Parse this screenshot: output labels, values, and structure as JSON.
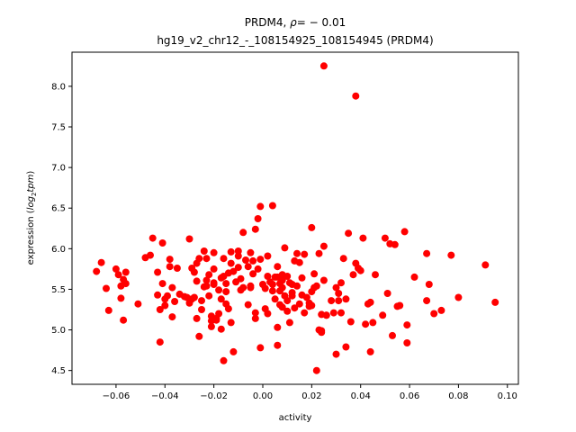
{
  "chart_data": {
    "type": "scatter",
    "title_line1_prefix": "PRDM4, ",
    "title_rho_symbol": "ρ",
    "title_rho_value": "= − 0.01",
    "title_line2": "hg19_v2_chr12_-_108154925_108154945 (PRDM4)",
    "xlabel": "activity",
    "ylabel_prefix": "expression (",
    "ylabel_italic_a": "log",
    "ylabel_sub": "2",
    "ylabel_italic_b": "tpm",
    "ylabel_suffix": ")",
    "xlim": [
      -0.078,
      0.1045
    ],
    "ylim": [
      4.33,
      8.42
    ],
    "xticks": [
      -0.06,
      -0.04,
      -0.02,
      0.0,
      0.02,
      0.04,
      0.06,
      0.08,
      0.1
    ],
    "xtick_labels": [
      "−0.06",
      "−0.04",
      "−0.02",
      "0.00",
      "0.02",
      "0.04",
      "0.06",
      "0.08",
      "0.10"
    ],
    "yticks": [
      4.5,
      5.0,
      5.5,
      6.0,
      6.5,
      7.0,
      7.5,
      8.0
    ],
    "ytick_labels": [
      "4.5",
      "5.0",
      "5.5",
      "6.0",
      "6.5",
      "7.0",
      "7.5",
      "8.0"
    ],
    "grid": false,
    "marker_color": "#ff0000",
    "points": [
      [
        0.025,
        8.25
      ],
      [
        0.038,
        7.88
      ],
      [
        -0.066,
        5.83
      ],
      [
        -0.068,
        5.72
      ],
      [
        -0.064,
        5.51
      ],
      [
        -0.063,
        5.24
      ],
      [
        -0.06,
        5.75
      ],
      [
        -0.059,
        5.68
      ],
      [
        -0.058,
        5.54
      ],
      [
        -0.058,
        5.39
      ],
      [
        -0.057,
        5.12
      ],
      [
        -0.057,
        5.62
      ],
      [
        -0.056,
        5.57
      ],
      [
        -0.056,
        5.71
      ],
      [
        -0.051,
        5.32
      ],
      [
        -0.048,
        5.89
      ],
      [
        -0.046,
        5.92
      ],
      [
        -0.045,
        6.13
      ],
      [
        -0.043,
        5.71
      ],
      [
        -0.043,
        5.43
      ],
      [
        -0.042,
        5.25
      ],
      [
        -0.042,
        4.85
      ],
      [
        -0.041,
        6.07
      ],
      [
        -0.041,
        5.57
      ],
      [
        -0.04,
        5.38
      ],
      [
        -0.04,
        5.3
      ],
      [
        -0.039,
        5.42
      ],
      [
        -0.038,
        5.87
      ],
      [
        -0.038,
        5.78
      ],
      [
        -0.037,
        5.52
      ],
      [
        -0.037,
        5.16
      ],
      [
        -0.036,
        5.35
      ],
      [
        -0.035,
        5.76
      ],
      [
        -0.034,
        5.44
      ],
      [
        -0.032,
        5.41
      ],
      [
        -0.031,
        5.4
      ],
      [
        -0.03,
        5.33
      ],
      [
        -0.03,
        6.12
      ],
      [
        -0.029,
        5.38
      ],
      [
        -0.029,
        5.76
      ],
      [
        -0.028,
        5.71
      ],
      [
        -0.028,
        5.4
      ],
      [
        -0.027,
        5.6
      ],
      [
        -0.027,
        5.14
      ],
      [
        -0.027,
        5.82
      ],
      [
        -0.026,
        5.88
      ],
      [
        -0.026,
        4.92
      ],
      [
        -0.025,
        5.36
      ],
      [
        -0.025,
        5.25
      ],
      [
        -0.024,
        5.53
      ],
      [
        -0.024,
        5.97
      ],
      [
        -0.023,
        5.54
      ],
      [
        -0.023,
        5.88
      ],
      [
        -0.023,
        5.61
      ],
      [
        -0.022,
        5.68
      ],
      [
        -0.022,
        5.42
      ],
      [
        -0.021,
        5.17
      ],
      [
        -0.021,
        5.04
      ],
      [
        -0.021,
        5.11
      ],
      [
        -0.02,
        5.95
      ],
      [
        -0.02,
        5.56
      ],
      [
        -0.02,
        5.75
      ],
      [
        -0.02,
        5.58
      ],
      [
        -0.019,
        5.14
      ],
      [
        -0.019,
        5.12
      ],
      [
        -0.018,
        5.2
      ],
      [
        -0.018,
        5.49
      ],
      [
        -0.017,
        5.64
      ],
      [
        -0.017,
        5.38
      ],
      [
        -0.017,
        5.01
      ],
      [
        -0.016,
        5.88
      ],
      [
        -0.016,
        4.62
      ],
      [
        -0.016,
        5.66
      ],
      [
        -0.015,
        5.32
      ],
      [
        -0.015,
        5.57
      ],
      [
        -0.015,
        5.47
      ],
      [
        -0.014,
        5.26
      ],
      [
        -0.014,
        5.7
      ],
      [
        -0.013,
        5.96
      ],
      [
        -0.013,
        5.09
      ],
      [
        -0.013,
        5.82
      ],
      [
        -0.012,
        4.73
      ],
      [
        -0.012,
        5.72
      ],
      [
        -0.011,
        5.59
      ],
      [
        -0.01,
        5.97
      ],
      [
        -0.01,
        5.91
      ],
      [
        -0.01,
        5.77
      ],
      [
        -0.009,
        5.63
      ],
      [
        -0.009,
        5.49
      ],
      [
        -0.008,
        5.52
      ],
      [
        -0.008,
        6.2
      ],
      [
        -0.007,
        5.86
      ],
      [
        -0.006,
        5.78
      ],
      [
        -0.006,
        5.31
      ],
      [
        -0.005,
        5.52
      ],
      [
        -0.005,
        5.95
      ],
      [
        -0.005,
        5.54
      ],
      [
        -0.004,
        5.69
      ],
      [
        -0.004,
        5.85
      ],
      [
        -0.003,
        6.24
      ],
      [
        -0.003,
        5.21
      ],
      [
        -0.003,
        5.14
      ],
      [
        -0.002,
        6.37
      ],
      [
        -0.002,
        5.75
      ],
      [
        -0.001,
        6.52
      ],
      [
        -0.001,
        5.87
      ],
      [
        -0.001,
        4.78
      ],
      [
        0.0,
        5.56
      ],
      [
        0.001,
        5.26
      ],
      [
        0.001,
        5.51
      ],
      [
        0.002,
        5.66
      ],
      [
        0.002,
        5.2
      ],
      [
        0.002,
        5.91
      ],
      [
        0.003,
        5.59
      ],
      [
        0.004,
        5.48
      ],
      [
        0.004,
        5.56
      ],
      [
        0.004,
        6.53
      ],
      [
        0.005,
        5.65
      ],
      [
        0.005,
        5.38
      ],
      [
        0.006,
        5.65
      ],
      [
        0.006,
        5.78
      ],
      [
        0.006,
        5.03
      ],
      [
        0.006,
        4.81
      ],
      [
        0.007,
        5.48
      ],
      [
        0.007,
        5.57
      ],
      [
        0.007,
        5.31
      ],
      [
        0.008,
        5.28
      ],
      [
        0.008,
        5.52
      ],
      [
        0.008,
        5.61
      ],
      [
        0.008,
        5.68
      ],
      [
        0.009,
        6.01
      ],
      [
        0.009,
        5.42
      ],
      [
        0.01,
        5.23
      ],
      [
        0.01,
        5.66
      ],
      [
        0.01,
        5.36
      ],
      [
        0.011,
        5.58
      ],
      [
        0.011,
        5.09
      ],
      [
        0.012,
        5.42
      ],
      [
        0.012,
        5.46
      ],
      [
        0.012,
        5.56
      ],
      [
        0.013,
        5.85
      ],
      [
        0.013,
        5.27
      ],
      [
        0.014,
        5.94
      ],
      [
        0.014,
        5.54
      ],
      [
        0.015,
        5.83
      ],
      [
        0.015,
        5.32
      ],
      [
        0.016,
        5.64
      ],
      [
        0.016,
        5.43
      ],
      [
        0.017,
        5.93
      ],
      [
        0.017,
        5.21
      ],
      [
        0.018,
        5.4
      ],
      [
        0.019,
        5.29
      ],
      [
        0.019,
        5.33
      ],
      [
        0.02,
        6.26
      ],
      [
        0.02,
        5.3
      ],
      [
        0.02,
        5.47
      ],
      [
        0.021,
        5.69
      ],
      [
        0.021,
        5.52
      ],
      [
        0.022,
        5.54
      ],
      [
        0.022,
        4.5
      ],
      [
        0.023,
        5.0
      ],
      [
        0.023,
        5.94
      ],
      [
        0.024,
        4.97
      ],
      [
        0.024,
        5.19
      ],
      [
        0.024,
        4.99
      ],
      [
        0.025,
        5.61
      ],
      [
        0.025,
        6.03
      ],
      [
        0.026,
        5.18
      ],
      [
        0.026,
        5.18
      ],
      [
        0.028,
        5.36
      ],
      [
        0.029,
        5.21
      ],
      [
        0.03,
        4.7
      ],
      [
        0.03,
        5.52
      ],
      [
        0.031,
        5.36
      ],
      [
        0.031,
        5.45
      ],
      [
        0.032,
        5.58
      ],
      [
        0.032,
        5.21
      ],
      [
        0.033,
        5.88
      ],
      [
        0.034,
        5.38
      ],
      [
        0.034,
        4.79
      ],
      [
        0.035,
        6.19
      ],
      [
        0.036,
        5.1
      ],
      [
        0.037,
        5.68
      ],
      [
        0.038,
        5.82
      ],
      [
        0.039,
        5.76
      ],
      [
        0.04,
        5.73
      ],
      [
        0.041,
        6.13
      ],
      [
        0.042,
        5.07
      ],
      [
        0.043,
        5.32
      ],
      [
        0.044,
        4.73
      ],
      [
        0.044,
        5.34
      ],
      [
        0.045,
        5.09
      ],
      [
        0.046,
        5.68
      ],
      [
        0.049,
        5.18
      ],
      [
        0.05,
        6.13
      ],
      [
        0.051,
        5.45
      ],
      [
        0.052,
        6.06
      ],
      [
        0.053,
        4.93
      ],
      [
        0.054,
        6.05
      ],
      [
        0.055,
        5.29
      ],
      [
        0.056,
        5.3
      ],
      [
        0.058,
        6.21
      ],
      [
        0.059,
        5.06
      ],
      [
        0.059,
        4.84
      ],
      [
        0.062,
        5.65
      ],
      [
        0.067,
        5.94
      ],
      [
        0.067,
        5.36
      ],
      [
        0.068,
        5.56
      ],
      [
        0.07,
        5.2
      ],
      [
        0.073,
        5.24
      ],
      [
        0.077,
        5.92
      ],
      [
        0.08,
        5.4
      ],
      [
        0.091,
        5.8
      ],
      [
        0.095,
        5.34
      ]
    ]
  }
}
